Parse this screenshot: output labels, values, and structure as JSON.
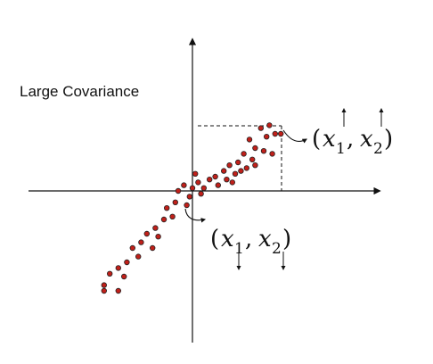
{
  "title": "Large Covariance",
  "colors": {
    "point_fill": "#c0201a",
    "point_stroke": "#222222",
    "axis": "#111111",
    "guide": "#111111"
  },
  "chart_data": {
    "type": "scatter",
    "title": "Large Covariance",
    "xlabel": "",
    "ylabel": "",
    "grid": false,
    "points": [
      [
        2.4,
        2.2
      ],
      [
        2.0,
        1.8
      ],
      [
        2.9,
        2.0
      ],
      [
        2.6,
        1.9
      ],
      [
        2.2,
        1.5
      ],
      [
        1.8,
        1.3
      ],
      [
        2.5,
        1.4
      ],
      [
        2.1,
        1.1
      ],
      [
        1.6,
        1.0
      ],
      [
        2.8,
        1.3
      ],
      [
        1.3,
        0.9
      ],
      [
        1.9,
        0.8
      ],
      [
        1.5,
        0.6
      ],
      [
        1.1,
        0.7
      ],
      [
        0.8,
        0.5
      ],
      [
        1.4,
        0.3
      ],
      [
        0.9,
        0.2
      ],
      [
        0.6,
        0.4
      ],
      [
        0.4,
        0.1
      ],
      [
        0.2,
        0.3
      ],
      [
        1.2,
        0.4
      ],
      [
        1.7,
        0.7
      ],
      [
        2.2,
        0.9
      ],
      [
        0.0,
        0.1
      ],
      [
        0.3,
        -0.1
      ],
      [
        -0.1,
        -0.2
      ],
      [
        -0.3,
        0.2
      ],
      [
        -0.5,
        0.0
      ],
      [
        -0.2,
        -0.5
      ],
      [
        -0.6,
        -0.4
      ],
      [
        -0.9,
        -0.6
      ],
      [
        -0.7,
        -0.9
      ],
      [
        -1.0,
        -1.0
      ],
      [
        -1.3,
        -1.3
      ],
      [
        -1.2,
        -1.6
      ],
      [
        -1.6,
        -1.5
      ],
      [
        -1.8,
        -1.8
      ],
      [
        -2.1,
        -2.0
      ],
      [
        -1.9,
        -2.3
      ],
      [
        -2.3,
        -2.5
      ],
      [
        -2.6,
        -2.7
      ],
      [
        -2.9,
        -2.9
      ],
      [
        -2.4,
        -3.0
      ],
      [
        -3.1,
        -3.3
      ],
      [
        -3.1,
        -3.5
      ],
      [
        -2.6,
        -3.5
      ],
      [
        -1.4,
        -2.0
      ],
      [
        0.1,
        0.6
      ],
      [
        2.7,
        2.3
      ]
    ],
    "highlight_point": [
      3.1,
      2.0
    ],
    "annotations": {
      "upper": {
        "left_paren": "(",
        "x_var": "x",
        "x_sub": "1",
        "comma": ",",
        "y_var": "x",
        "y_sub": "2",
        "right_paren": ")"
      },
      "lower": {
        "left_paren": "(",
        "x_var": "x",
        "x_sub": "1",
        "comma": ",",
        "y_var": "x",
        "y_sub": "2",
        "right_paren": ")"
      }
    }
  }
}
